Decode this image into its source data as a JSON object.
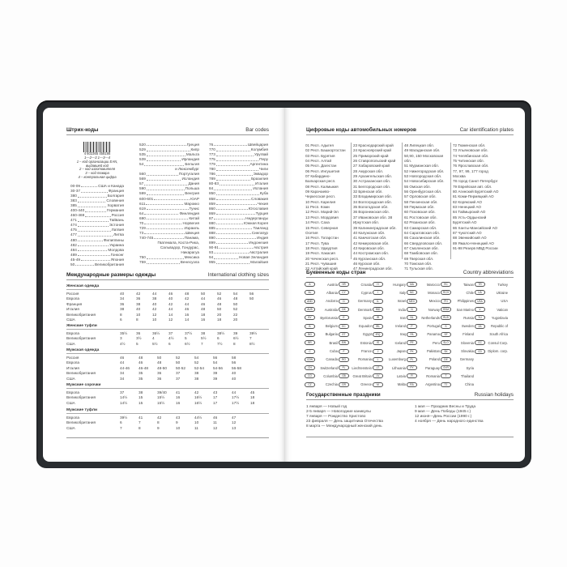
{
  "left": {
    "barcodes": {
      "title": "Штрих-коды",
      "title_en": "Bar codes",
      "barcode_number": "4 602365 458186",
      "barcode_marks": "1—2—3 1—3—4",
      "caption": [
        "1 – код организации EAN, выдавшей код",
        "2 – код изготовителя",
        "3 – код товара",
        "4 – контрольная цифра"
      ],
      "columns": [
        [
          [
            "00-09",
            "США и Канада"
          ],
          [
            "30-37",
            "Франция"
          ],
          [
            "380",
            "Болгария"
          ],
          [
            "383",
            "Словения"
          ],
          [
            "385",
            "Хорватия"
          ],
          [
            "400-440",
            "Германия"
          ],
          [
            "460-469",
            "Россия"
          ],
          [
            "471",
            "Тайвань"
          ],
          [
            "474",
            "Эстония"
          ],
          [
            "475",
            "Латвия"
          ],
          [
            "477",
            "Литва"
          ],
          [
            "480",
            "Филиппины"
          ],
          [
            "482",
            "Украина"
          ],
          [
            "484",
            "Молдова"
          ],
          [
            "489",
            "Гонконг"
          ],
          [
            "45-49",
            "Япония"
          ],
          [
            "50",
            "Великобритания"
          ]
        ],
        [
          [
            "520",
            "Греция"
          ],
          [
            "529",
            "Кипр"
          ],
          [
            "535",
            "Мальта"
          ],
          [
            "539",
            "Ирландия"
          ],
          [
            "54",
            "Бельгия"
          ],
          [
            "",
            "и Люксембург"
          ],
          [
            "560",
            "Португалия"
          ],
          [
            "569",
            "Исландия"
          ],
          [
            "57",
            "Дания"
          ],
          [
            "590",
            "Польша"
          ],
          [
            "599",
            "Венгрия"
          ],
          [
            "600-601",
            "ЮАР"
          ],
          [
            "611",
            "Марокко"
          ],
          [
            "619",
            "Тунис"
          ],
          [
            "64",
            "Финляндия"
          ],
          [
            "690",
            "Китай"
          ],
          [
            "70",
            "Норвегия"
          ],
          [
            "729",
            "Израиль"
          ],
          [
            "73",
            "Швеция"
          ],
          [
            "740-745",
            "Панама,"
          ],
          [
            "",
            "Гватемала, Коста-Рика,"
          ],
          [
            "",
            "Сальвадор, Гондурас,"
          ],
          [
            "",
            "Никарагуа"
          ],
          [
            "750",
            "Мексика"
          ],
          [
            "759",
            "Венесуэла"
          ]
        ],
        [
          [
            "76",
            "Швейцария"
          ],
          [
            "770",
            "Колумбия"
          ],
          [
            "773",
            "Уругвай"
          ],
          [
            "775",
            "Перу"
          ],
          [
            "779",
            "Аргентина"
          ],
          [
            "780",
            "Чили"
          ],
          [
            "786",
            "Эквадор"
          ],
          [
            "789",
            "Бразилия"
          ],
          [
            "80-83",
            "Италия"
          ],
          [
            "84",
            "Испания"
          ],
          [
            "850",
            "Куба"
          ],
          [
            "858",
            "Словакия"
          ],
          [
            "859",
            "Чехия"
          ],
          [
            "860",
            "Югославия"
          ],
          [
            "869",
            "Турция"
          ],
          [
            "87",
            "Нидерланды"
          ],
          [
            "880",
            "Южная Корея"
          ],
          [
            "885",
            "Таиланд"
          ],
          [
            "888",
            "Сингапур"
          ],
          [
            "890",
            "Индия"
          ],
          [
            "899",
            "Индонезия"
          ],
          [
            "90-91",
            "Австрия"
          ],
          [
            "93",
            "Австралия"
          ],
          [
            "94",
            "Новая Зеландия"
          ],
          [
            "955",
            "Малайзия"
          ]
        ]
      ]
    },
    "clothing": {
      "title": "Международные размеры одежды",
      "title_en": "International clothing sizes",
      "sections": [
        {
          "title": "Женская одежда",
          "rows": [
            [
              "Россия",
              "40",
              "42",
              "44",
              "46",
              "48",
              "50",
              "52",
              "54",
              "56"
            ],
            [
              "Европа",
              "34",
              "36",
              "38",
              "40",
              "42",
              "44",
              "46",
              "48",
              "50"
            ],
            [
              "Франция",
              "36",
              "38",
              "40",
              "42",
              "44",
              "46",
              "48",
              "50"
            ],
            [
              "Италия",
              "38",
              "40",
              "42",
              "44",
              "46",
              "48",
              "50",
              "52"
            ],
            [
              "Великобритания",
              "8",
              "10",
              "12",
              "14",
              "16",
              "18",
              "20",
              "22"
            ],
            [
              "США",
              "6",
              "8",
              "10",
              "12",
              "14",
              "16",
              "18",
              "20"
            ]
          ]
        },
        {
          "title": "Женские туфли",
          "rows": [
            [
              "Европа",
              "35½",
              "36",
              "36½",
              "37",
              "37½",
              "38",
              "38½",
              "39",
              "39½"
            ],
            [
              "Великобритания",
              "3",
              "3½",
              "4",
              "4½",
              "5",
              "5½",
              "6",
              "6½",
              "7"
            ],
            [
              "США",
              "4½",
              "5",
              "5½",
              "6",
              "6½",
              "7",
              "7½",
              "8",
              "8½"
            ]
          ]
        },
        {
          "title": "Мужская одежда",
          "men": true,
          "rows": [
            [
              "Россия",
              "46",
              "48",
              "50",
              "52",
              "54",
              "56",
              "58"
            ],
            [
              "Европа",
              "44",
              "46",
              "48",
              "50",
              "52",
              "54",
              "56"
            ],
            [
              "Италия",
              "44-46",
              "46-48",
              "48-50",
              "50-52",
              "52-54",
              "54-56",
              "56-58"
            ],
            [
              "Великобритания",
              "34",
              "35",
              "36",
              "37",
              "38",
              "39",
              "40"
            ],
            [
              "США",
              "34",
              "35",
              "36",
              "37",
              "38",
              "39",
              "40"
            ]
          ]
        },
        {
          "title": "Мужские сорочки",
          "men": true,
          "rows": [
            [
              "Европа",
              "37",
              "38",
              "39/40",
              "41",
              "42",
              "43",
              "44",
              "45"
            ],
            [
              "Великобритания",
              "14½",
              "15",
              "15½",
              "16",
              "16½",
              "17",
              "17½",
              "18"
            ],
            [
              "США",
              "14½",
              "15",
              "15½",
              "16",
              "16½",
              "17",
              "17½",
              "18"
            ]
          ]
        },
        {
          "title": "Мужские туфли",
          "men": true,
          "rows": [
            [
              "Европа",
              "39½",
              "41",
              "42",
              "43",
              "44½",
              "46",
              "47"
            ],
            [
              "Великобритания",
              "6",
              "7",
              "8",
              "9",
              "10",
              "11",
              "12"
            ],
            [
              "США",
              "7",
              "8",
              "9",
              "10",
              "11",
              "12",
              "13"
            ]
          ]
        }
      ]
    }
  },
  "right": {
    "plates": {
      "title": "Цифровые коды автомобильных номеров",
      "title_en": "Car identification plates",
      "columns": [
        [
          "01 Респ. Адыгея",
          "02 Респ. Башкортостан",
          "03 Респ. Бурятия",
          "04 Респ. Алтай",
          "05 Респ. Дагестан",
          "06 Респ. Ингушетия",
          "07 Кабардино-",
          "Балкарская респ.",
          "08 Респ. Калмыкия",
          "09 Карачаево-",
          "Черкесская респ.",
          "10 Респ. Карелия",
          "11 Респ. Коми",
          "12 Респ. Марий-Эл",
          "13 Респ. Мордовия",
          "14 Респ. Саха",
          "15 Респ. Северная",
          "Осетия",
          "16 Респ. Татарстан",
          "17 Респ. Тува",
          "18 Респ. Удмуртия",
          "19 Респ. Хакасия",
          "20 Чеченская респ.",
          "21 Респ. Чувашия",
          "22 Алтайский край"
        ],
        [
          "23 Краснодарский край",
          "24 Красноярский край",
          "25 Приморский край",
          "26 Ставропольский край",
          "27 Хабаровский край",
          "28 Амурская обл.",
          "29 Архангельская обл.",
          "30 Астраханская обл.",
          "31 Белгородская обл.",
          "32 Брянская обл.",
          "33 Владимирская обл.",
          "34 Волгоградская обл.",
          "35 Вологодская обл.",
          "36 Воронежская обл.",
          "37 Ивановская обл. 38",
          "Иркутская обл.",
          "39 Калининградская обл.",
          "40 Калужская обл.",
          "41 Камчатская обл.",
          "42 Кемеровская обл.",
          "43 Кировская обл.",
          "44 Костромская обл.",
          "45 Курганская обл.",
          "46 Курская обл.",
          "47 Ленинградская обл."
        ],
        [
          "48 Липецкая обл.",
          "49 Магаданская обл.",
          "50,90, 150 Московская",
          "обл.",
          "51 Мурманская обл.",
          "52 Нижегородская обл.",
          "53 Новгородская обл.",
          "54 Новосибирская обл.",
          "55 Омская обл.",
          "56 Оренбургская обл.",
          "57 Орловская обл.",
          "58 Пензенская обл.",
          "59 Пермская обл.",
          "60 Псковская обл.",
          "61 Ростовская обл.",
          "62 Рязанская обл.",
          "63 Самарская обл.",
          "64 Саратовская обл.",
          "65 Сахалинская обл.",
          "66 Свердловская обл.",
          "67 Смоленская обл.",
          "68 Тамбовская обл.",
          "69 Тверская обл.",
          "70 Томская обл.",
          "71 Тульская обл."
        ],
        [
          "72 Тюменская обл.",
          "73 Ульяновская обл.",
          "74 Челябинская обл.",
          "75 Читинская обл.",
          "76 Ярославская обл.",
          "77, 97, 99, 177 город",
          "Москва",
          "78 город Санкт-Петербург",
          "79 Еврейская авт. обл.",
          "80 Агинский Бурятский АО",
          "81 Коми-Пермяцкий АО",
          "82 Корякский АО",
          "83 Ненецкий АО",
          "84 Таймырский АО",
          "85 Усть-Ордынский",
          "Бурятский АО",
          "86 Ханты-Мансийский АО",
          "87 Чукотский АО",
          "88 Эвенкийский АО",
          "89 Ямало-Ненецкий АО",
          "91-98 Резерв МВД России"
        ]
      ]
    },
    "countries": {
      "title": "Буквенные коды стран",
      "title_en": "Country abbreviations",
      "columns": [
        [
          [
            "A",
            "Austria"
          ],
          [
            "AL",
            "Albania"
          ],
          [
            "AND",
            "Andorra"
          ],
          [
            "AUS",
            "Australia"
          ],
          [
            "BY",
            "Byelorussia"
          ],
          [
            "B",
            "Belgium"
          ],
          [
            "BG",
            "Bulgaria"
          ],
          [
            "BR",
            "Brasil"
          ],
          [
            "C",
            "Cuba"
          ],
          [
            "CDN",
            "Canada"
          ],
          [
            "CH",
            "Switzerland"
          ],
          [
            "CO",
            "Columbia"
          ],
          [
            "CZ",
            "Czechia"
          ]
        ],
        [
          [
            "HR",
            "Croatia"
          ],
          [
            "CY",
            "Cyprus"
          ],
          [
            "D",
            "Germany"
          ],
          [
            "DK",
            "Denmark"
          ],
          [
            "E",
            "Spain"
          ],
          [
            "EC",
            "Equador"
          ],
          [
            "ET",
            "Egypt"
          ],
          [
            "EW",
            "Estonia"
          ],
          [
            "F",
            "France"
          ],
          [
            "RO",
            "Romania"
          ],
          [
            "FL",
            "Liechtenstein"
          ],
          [
            "GB",
            "Great Britain"
          ],
          [
            "GR",
            "Greece"
          ]
        ],
        [
          [
            "H",
            "Hungary"
          ],
          [
            "I",
            "Italy"
          ],
          [
            "IL",
            "Israel"
          ],
          [
            "IND",
            "India"
          ],
          [
            "IR",
            "Iran"
          ],
          [
            "IRL",
            "Ireland"
          ],
          [
            "IRQ",
            "Iraq"
          ],
          [
            "IS",
            "Iceland"
          ],
          [
            "J",
            "Japan"
          ],
          [
            "L",
            "Luxemburg"
          ],
          [
            "LT",
            "Lithuania"
          ],
          [
            "LV",
            "Latvia"
          ],
          [
            "M",
            "Malta"
          ]
        ],
        [
          [
            "MA",
            "Marocco"
          ],
          [
            "MC",
            "Monaco"
          ],
          [
            "MEX",
            "Mexico"
          ],
          [
            "N",
            "Norway"
          ],
          [
            "NL",
            "Netherlands"
          ],
          [
            "P",
            "Portugal"
          ],
          [
            "PA",
            "Panama"
          ],
          [
            "PE",
            "Peru"
          ],
          [
            "PK",
            "Pakistan"
          ],
          [
            "PL",
            "Poland"
          ],
          [
            "PY",
            "Paraguay"
          ],
          [
            "R",
            "Romania"
          ],
          [
            "RA",
            "Argentina"
          ]
        ],
        [
          [
            "RC",
            "Taiwan"
          ],
          [
            "RCH",
            "Chile"
          ],
          [
            "PH",
            "Philippines"
          ],
          [
            "RSM",
            "San Marino"
          ],
          [
            "RUS",
            "Russia"
          ],
          [
            "S",
            "Sweden"
          ],
          [
            "SF",
            "Finland"
          ],
          [
            "SLO",
            "Slovenia"
          ],
          [
            "SK",
            "Slovakia"
          ],
          [
            "DE",
            "Germany"
          ],
          [
            "SYR",
            "Syria"
          ],
          [
            "T",
            "Thailand"
          ],
          [
            "TJ",
            "China"
          ]
        ],
        [
          [
            "TR",
            "Turkey"
          ],
          [
            "UA",
            "Ukraine"
          ],
          [
            "USA",
            "USA"
          ],
          [
            "V",
            "Vatican"
          ],
          [
            "YU",
            "Yugoslavia"
          ],
          [
            "ZA",
            "Republic of"
          ],
          [
            "",
            "South Africa"
          ],
          [
            "CC",
            "Consul Corp."
          ],
          [
            "CD",
            "Diplom. corp."
          ]
        ]
      ]
    },
    "holidays": {
      "title": "Государственные праздники",
      "title_en": "Russian holidays",
      "columns": [
        [
          "1 января — Новый год",
          "2-5 января — Новогодние каникулы",
          "7 января — Рождество Христово",
          "23 февраля — День защитника Отечества",
          "8 марта — Международный женский день"
        ],
        [
          "1 мая — Праздник Весны и Труда",
          "9 мая — День Победы (1945 г.)",
          "12 июня—День России (1990 г.)",
          "4 ноября — День народного единства"
        ]
      ]
    }
  }
}
